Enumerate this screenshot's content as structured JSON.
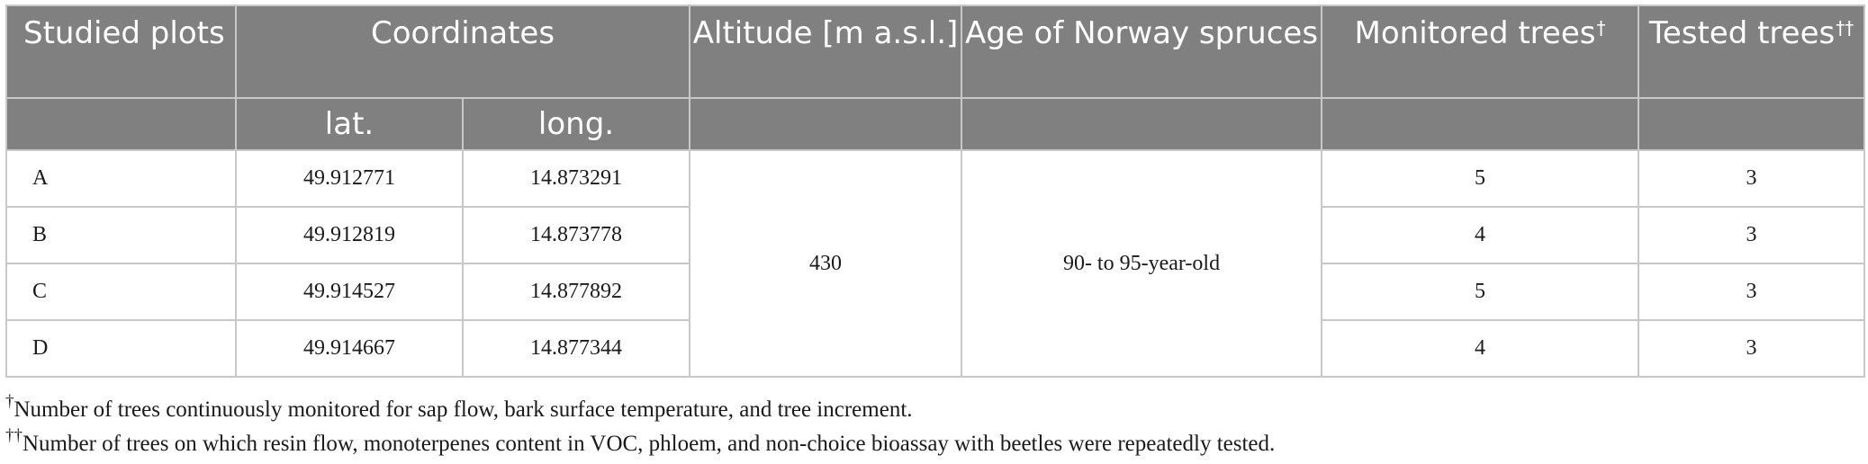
{
  "header": {
    "studied_plots": "Studied plots",
    "coordinates": "Coordinates",
    "altitude": "Altitude [m a.s.l.]",
    "age": "Age of Norway spruces",
    "monitored": "Monitored trees",
    "monitored_mark": "†",
    "tested": "Tested trees",
    "tested_mark": "††",
    "lat": "lat.",
    "long": "long."
  },
  "rows": [
    {
      "plot": "A",
      "lat": "49.912771",
      "long": "14.873291",
      "monitored": "5",
      "tested": "3"
    },
    {
      "plot": "B",
      "lat": "49.912819",
      "long": "14.873778",
      "monitored": "4",
      "tested": "3"
    },
    {
      "plot": "C",
      "lat": "49.914527",
      "long": "14.877892",
      "monitored": "5",
      "tested": "3"
    },
    {
      "plot": "D",
      "lat": "49.914667",
      "long": "14.877344",
      "monitored": "4",
      "tested": "3"
    }
  ],
  "shared": {
    "altitude": "430",
    "age": "90- to 95-year-old"
  },
  "footnotes": [
    {
      "mark": "†",
      "text": "Number of trees continuously monitored for sap flow, bark surface temperature, and tree increment."
    },
    {
      "mark": "††",
      "text": "Number of trees on which resin flow, monoterpenes content in VOC, phloem, and non-choice bioassay with beetles were repeatedly tested."
    }
  ],
  "colors": {
    "header_bg": "#808080",
    "header_text": "#ffffff",
    "grid": "#c8c8c8"
  }
}
